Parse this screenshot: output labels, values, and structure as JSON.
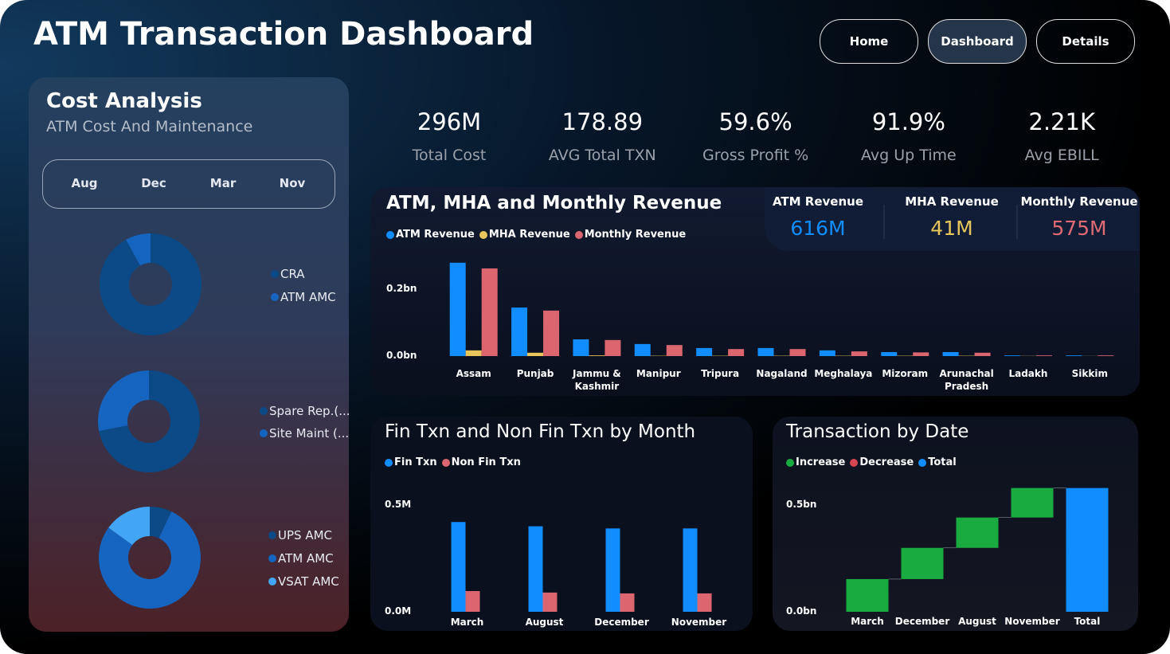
{
  "header": {
    "title": "ATM Transaction Dashboard",
    "nav": [
      "Home",
      "Dashboard",
      "Details"
    ]
  },
  "cost_panel": {
    "title": "Cost Analysis",
    "subtitle": "ATM Cost And Maintenance",
    "months": [
      "Aug",
      "Dec",
      "Mar",
      "Nov"
    ]
  },
  "kpis": [
    {
      "value": "296M",
      "label": "Total Cost"
    },
    {
      "value": "178.89",
      "label": "AVG Total TXN"
    },
    {
      "value": "59.6%",
      "label": "Gross Profit %"
    },
    {
      "value": "91.9%",
      "label": "Avg Up Time"
    },
    {
      "value": "2.21K",
      "label": "Avg EBILL"
    }
  ],
  "chart_data": [
    {
      "type": "pie",
      "donut": true,
      "categories": [
        "CRA",
        "ATM AMC"
      ],
      "values": [
        92,
        8
      ],
      "colors": [
        "#0b4a86",
        "#1565c0"
      ]
    },
    {
      "type": "pie",
      "donut": true,
      "categories": [
        "Spare Rep.(...",
        "Site Maint (..."
      ],
      "values": [
        72,
        28
      ],
      "colors": [
        "#0b4a86",
        "#1565c0"
      ]
    },
    {
      "type": "pie",
      "donut": true,
      "categories": [
        "UPS AMC",
        "ATM AMC",
        "VSAT AMC"
      ],
      "values": [
        7,
        78,
        15
      ],
      "colors": [
        "#0b4a86",
        "#1565c0",
        "#42a5f5"
      ]
    },
    {
      "type": "bar",
      "title": "ATM, MHA and Monthly Revenue",
      "categories": [
        "Assam",
        "Punjab",
        "Jammu & Kashmir",
        "Manipur",
        "Tripura",
        "Nagaland",
        "Meghalaya",
        "Mizoram",
        "Arunachal Pradesh",
        "Ladakh",
        "Sikkim"
      ],
      "series": [
        {
          "name": "ATM Revenue",
          "color": "#118dff",
          "values": [
            0.279,
            0.145,
            0.05,
            0.036,
            0.024,
            0.024,
            0.017,
            0.012,
            0.012,
            0.002,
            0.002
          ]
        },
        {
          "name": "MHA Revenue",
          "color": "#e8c65b",
          "values": [
            0.017,
            0.01,
            0.002,
            0.001,
            0.001,
            0.001,
            0.001,
            0.001,
            0.001,
            0.0005,
            0.0003
          ]
        },
        {
          "name": "Monthly Revenue",
          "color": "#dc6670",
          "values": [
            0.262,
            0.136,
            0.048,
            0.033,
            0.021,
            0.021,
            0.014,
            0.011,
            0.01,
            0.002,
            0.002
          ]
        }
      ],
      "ylim": [
        0,
        0.3
      ],
      "yticks": [
        {
          "value": 0,
          "label": "0.0bn"
        },
        {
          "value": 0.2,
          "label": "0.2bn"
        }
      ],
      "summary": [
        {
          "label": "ATM Revenue",
          "value": "616M",
          "color": "#118dff"
        },
        {
          "label": "MHA Revenue",
          "value": "41M",
          "color": "#e8c65b"
        },
        {
          "label": "Monthly Revenue",
          "value": "575M",
          "color": "#e06a74"
        }
      ]
    },
    {
      "type": "bar",
      "title": "Fin Txn and Non Fin Txn by Month",
      "categories": [
        "March",
        "August",
        "December",
        "November"
      ],
      "series": [
        {
          "name": "Fin Txn",
          "color": "#118dff",
          "values": [
            0.42,
            0.4,
            0.39,
            0.39
          ]
        },
        {
          "name": "Non Fin Txn",
          "color": "#dc6670",
          "values": [
            0.097,
            0.09,
            0.086,
            0.086
          ]
        }
      ],
      "ylim": [
        0,
        0.6
      ],
      "yticks": [
        {
          "value": 0,
          "label": "0.0M"
        },
        {
          "value": 0.5,
          "label": "0.5M"
        }
      ]
    },
    {
      "type": "waterfall",
      "title": "Transaction by Date",
      "categories": [
        "March",
        "December",
        "August",
        "November",
        "Total"
      ],
      "values": [
        0.153,
        0.146,
        0.142,
        0.138,
        0.579
      ],
      "legend": [
        {
          "name": "Increase",
          "color": "#1aab40"
        },
        {
          "name": "Decrease",
          "color": "#d64550"
        },
        {
          "name": "Total",
          "color": "#118dff"
        }
      ],
      "ylim": [
        0,
        0.6
      ],
      "yticks": [
        {
          "value": 0,
          "label": "0.0bn"
        },
        {
          "value": 0.5,
          "label": "0.5bn"
        }
      ]
    }
  ]
}
